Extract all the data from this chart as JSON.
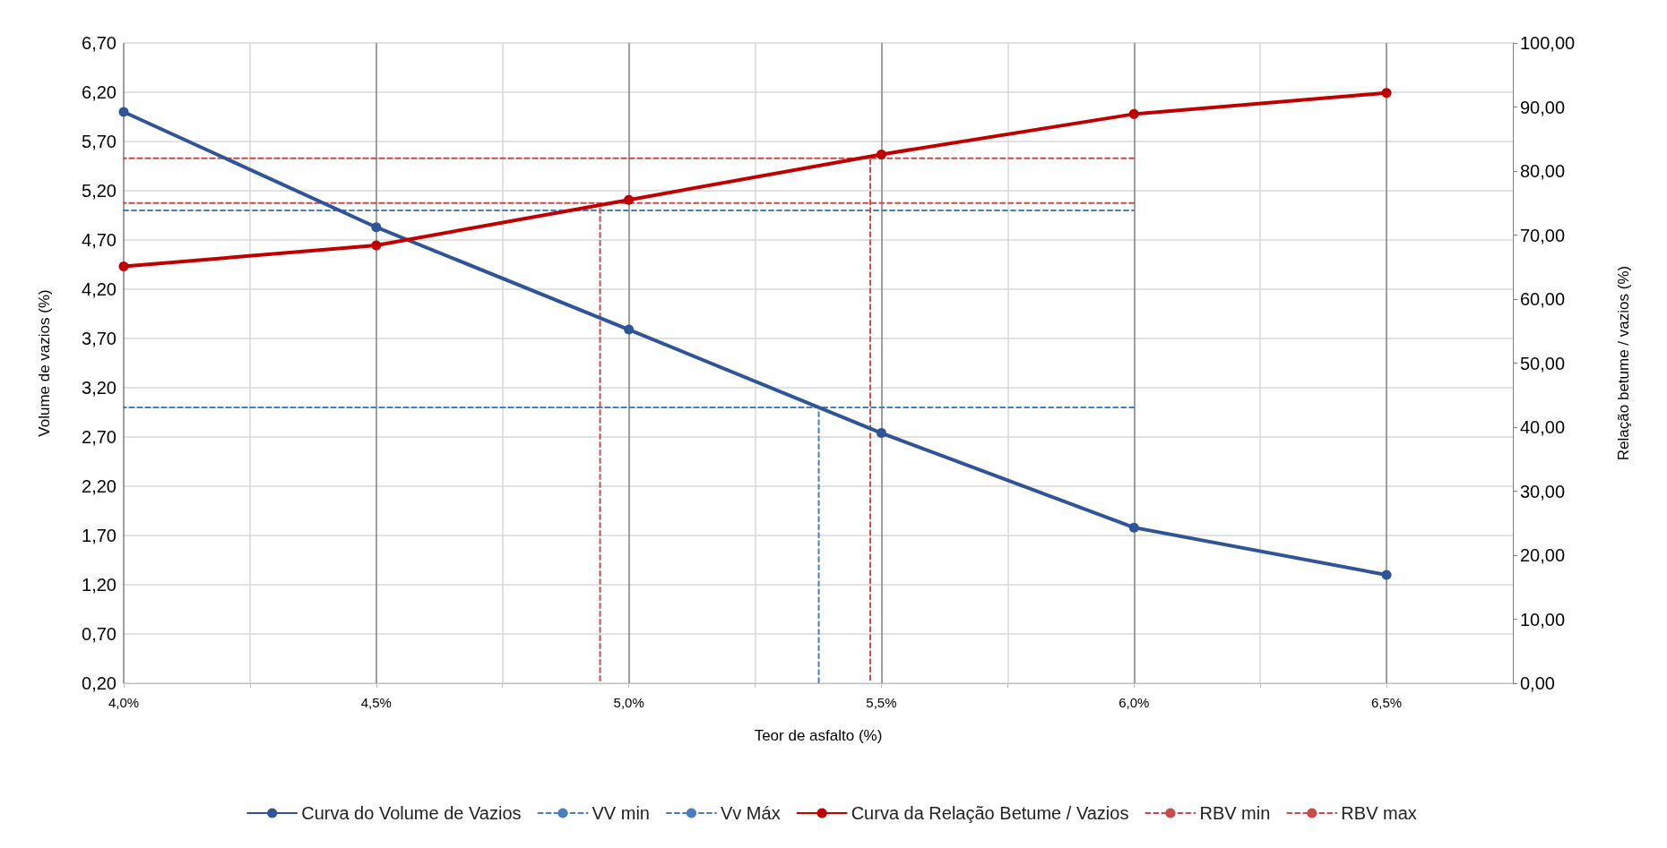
{
  "chart_data": {
    "type": "line",
    "xlabel": "Teor de asfalto (%)",
    "ylabel": "Volume de vazios (%)",
    "y2label": "Relação betume / vazios (%)",
    "xlim": [
      4.0,
      6.75
    ],
    "xticks": [
      {
        "value": 4.0,
        "label": "4,0%"
      },
      {
        "value": 4.25,
        "label": null
      },
      {
        "value": 4.5,
        "label": "4,5%"
      },
      {
        "value": 4.75,
        "label": null
      },
      {
        "value": 5.0,
        "label": "5,0%"
      },
      {
        "value": 5.25,
        "label": null
      },
      {
        "value": 5.5,
        "label": "5,5%"
      },
      {
        "value": 5.75,
        "label": null
      },
      {
        "value": 6.0,
        "label": "6,0%"
      },
      {
        "value": 6.25,
        "label": null
      },
      {
        "value": 6.5,
        "label": "6,5%"
      }
    ],
    "ylim": [
      0.2,
      6.7
    ],
    "yticks": [
      {
        "value": 0.2,
        "label": "0,20"
      },
      {
        "value": 0.7,
        "label": "0,70"
      },
      {
        "value": 1.2,
        "label": "1,20"
      },
      {
        "value": 1.7,
        "label": "1,70"
      },
      {
        "value": 2.2,
        "label": "2,20"
      },
      {
        "value": 2.7,
        "label": "2,70"
      },
      {
        "value": 3.2,
        "label": "3,20"
      },
      {
        "value": 3.7,
        "label": "3,70"
      },
      {
        "value": 4.2,
        "label": "4,20"
      },
      {
        "value": 4.7,
        "label": "4,70"
      },
      {
        "value": 5.2,
        "label": "5,20"
      },
      {
        "value": 5.7,
        "label": "5,70"
      },
      {
        "value": 6.2,
        "label": "6,20"
      },
      {
        "value": 6.7,
        "label": "6,70"
      }
    ],
    "y2lim": [
      0,
      100
    ],
    "y2ticks": [
      {
        "value": 0,
        "label": "0,00"
      },
      {
        "value": 10,
        "label": "10,00"
      },
      {
        "value": 20,
        "label": "20,00"
      },
      {
        "value": 30,
        "label": "30,00"
      },
      {
        "value": 40,
        "label": "40,00"
      },
      {
        "value": 50,
        "label": "50,00"
      },
      {
        "value": 60,
        "label": "60,00"
      },
      {
        "value": 70,
        "label": "70,00"
      },
      {
        "value": 80,
        "label": "80,00"
      },
      {
        "value": 90,
        "label": "90,00"
      },
      {
        "value": 100,
        "label": "100,00"
      }
    ],
    "grid": true,
    "legend": "bottom",
    "series": [
      {
        "name": "Curva do Volume de Vazios",
        "color": "#2f5597",
        "marker": "circle",
        "line_style": "solid",
        "x": [
          4.0,
          4.5,
          5.0,
          5.5,
          6.0,
          6.5
        ],
        "values": [
          6.0,
          4.83,
          3.79,
          2.74,
          1.78,
          1.3
        ]
      },
      {
        "name": "VV min",
        "color": "#4a7ebb",
        "marker": "none",
        "line_style": "dashed",
        "x": [
          6.0,
          4.0,
          5.376,
          5.376
        ],
        "values": [
          3.0,
          3.0,
          3.0,
          0.2
        ]
      },
      {
        "name": "Vv Máx",
        "color": "#4a7ebb",
        "marker": "none",
        "line_style": "dashed",
        "x": [
          4.0,
          6.0
        ],
        "values": [
          5.0,
          5.0
        ]
      },
      {
        "name": "Curva da Relação Betume / Vazios",
        "color": "#c00000",
        "marker": "circle",
        "line_style": "solid",
        "axis": "y2",
        "x": [
          4.0,
          4.5,
          5.0,
          5.5,
          6.0,
          6.5
        ],
        "values": [
          65.1,
          68.4,
          75.5,
          82.6,
          88.9,
          92.2
        ]
      },
      {
        "name": "RBV min",
        "color": "#c84c4c",
        "marker": "none",
        "line_style": "dashed",
        "axis": "y2",
        "x": [
          6.0,
          4.0,
          4.943,
          4.943
        ],
        "values": [
          75.0,
          75.0,
          75.0,
          0
        ]
      },
      {
        "name": "RBV max",
        "color": "#c84c4c",
        "marker": "none",
        "line_style": "dashed",
        "axis": "y2",
        "x": [
          6.0,
          4.0,
          5.478,
          5.478
        ],
        "values": [
          82.0,
          82.0,
          82.0,
          0
        ]
      }
    ]
  }
}
